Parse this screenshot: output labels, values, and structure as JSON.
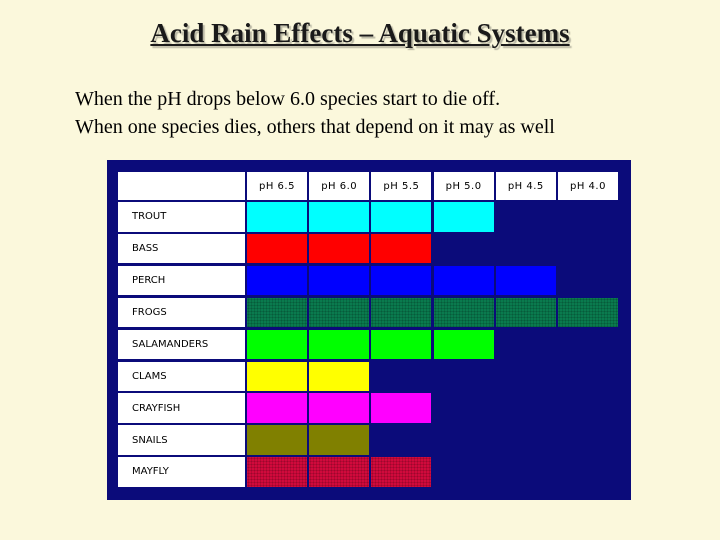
{
  "title": "Acid Rain Effects – Aquatic Systems",
  "lines": [
    "When the pH drops below 6.0 species start to die off.",
    "When one species dies, others that depend on it may as well"
  ],
  "table": {
    "columns": [
      "pH 6.5",
      "pH 6.0",
      "pH 5.5",
      "pH 5.0",
      "pH 4.5",
      "pH 4.0"
    ],
    "rows": [
      {
        "name": "TROUT",
        "survives_columns": 4,
        "color": "#00ffff",
        "pattern": false
      },
      {
        "name": "BASS",
        "survives_columns": 3,
        "color": "#ff0000",
        "pattern": false
      },
      {
        "name": "PERCH",
        "survives_columns": 5,
        "color": "#0000ff",
        "pattern": false
      },
      {
        "name": "FROGS",
        "survives_columns": 6,
        "color": "#0a7a4e",
        "pattern": true
      },
      {
        "name": "SALAMANDERS",
        "survives_columns": 4,
        "color": "#00ff00",
        "pattern": false
      },
      {
        "name": "CLAMS",
        "survives_columns": 2,
        "color": "#ffff00",
        "pattern": false
      },
      {
        "name": "CRAYFISH",
        "survives_columns": 3,
        "color": "#ff00ff",
        "pattern": false
      },
      {
        "name": "SNAILS",
        "survives_columns": 2,
        "color": "#808000",
        "pattern": false
      },
      {
        "name": "MAYFLY",
        "survives_columns": 3,
        "color": "#d00a3c",
        "pattern": true
      }
    ]
  }
}
